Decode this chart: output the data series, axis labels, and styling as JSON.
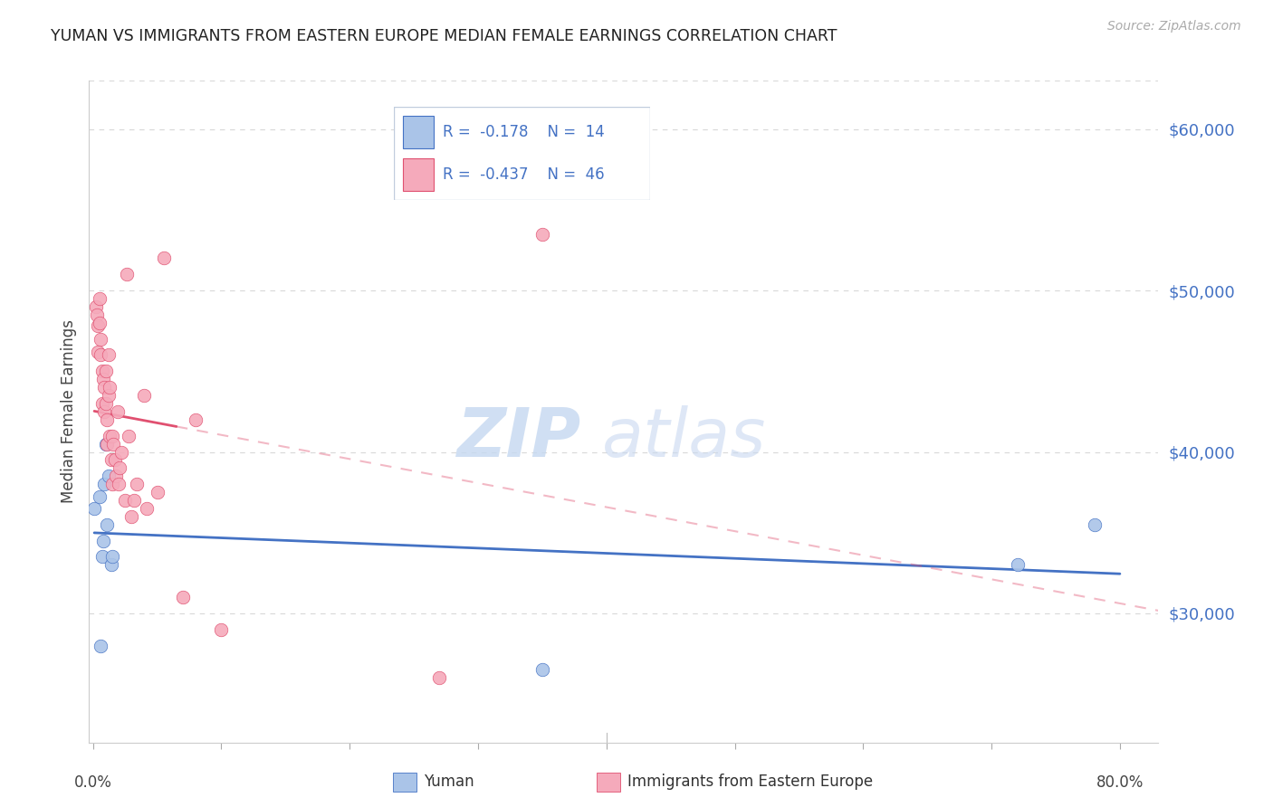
{
  "title": "YUMAN VS IMMIGRANTS FROM EASTERN EUROPE MEDIAN FEMALE EARNINGS CORRELATION CHART",
  "source": "Source: ZipAtlas.com",
  "ylabel": "Median Female Earnings",
  "y_ticks": [
    30000,
    40000,
    50000,
    60000
  ],
  "y_tick_labels": [
    "$30,000",
    "$40,000",
    "$50,000",
    "$60,000"
  ],
  "y_min": 22000,
  "y_max": 63000,
  "x_min": -0.003,
  "x_max": 0.83,
  "blue_fill": "#aac4e8",
  "pink_fill": "#f5aabb",
  "blue_edge": "#4472C4",
  "pink_edge": "#E05070",
  "grid_color": "#d8d8d8",
  "blue_points_x": [
    0.001,
    0.005,
    0.006,
    0.007,
    0.008,
    0.009,
    0.01,
    0.011,
    0.012,
    0.014,
    0.015,
    0.35,
    0.72,
    0.78
  ],
  "blue_points_y": [
    36500,
    37200,
    28000,
    33500,
    34500,
    38000,
    40500,
    35500,
    38500,
    33000,
    33500,
    26500,
    33000,
    35500
  ],
  "pink_points_x": [
    0.002,
    0.003,
    0.004,
    0.004,
    0.005,
    0.005,
    0.006,
    0.006,
    0.007,
    0.007,
    0.008,
    0.009,
    0.009,
    0.01,
    0.01,
    0.011,
    0.011,
    0.012,
    0.012,
    0.013,
    0.013,
    0.014,
    0.015,
    0.015,
    0.016,
    0.017,
    0.018,
    0.019,
    0.02,
    0.021,
    0.022,
    0.025,
    0.026,
    0.028,
    0.03,
    0.032,
    0.034,
    0.04,
    0.042,
    0.05,
    0.055,
    0.07,
    0.08,
    0.1,
    0.27,
    0.35
  ],
  "pink_points_y": [
    49000,
    48500,
    47800,
    46200,
    48000,
    49500,
    46000,
    47000,
    45000,
    43000,
    44500,
    44000,
    42500,
    43000,
    45000,
    42000,
    40500,
    46000,
    43500,
    44000,
    41000,
    39500,
    38000,
    41000,
    40500,
    39500,
    38500,
    42500,
    38000,
    39000,
    40000,
    37000,
    51000,
    41000,
    36000,
    37000,
    38000,
    43500,
    36500,
    37500,
    52000,
    31000,
    42000,
    29000,
    26000,
    53500
  ],
  "pink_line_x_start": 0.001,
  "pink_line_x_solid_end": 0.065,
  "pink_line_x_end": 0.83,
  "blue_line_x_start": 0.001,
  "blue_line_x_end": 0.8,
  "x_tick_positions": [
    0.0,
    0.1,
    0.2,
    0.3,
    0.4,
    0.5,
    0.6,
    0.7,
    0.8
  ]
}
